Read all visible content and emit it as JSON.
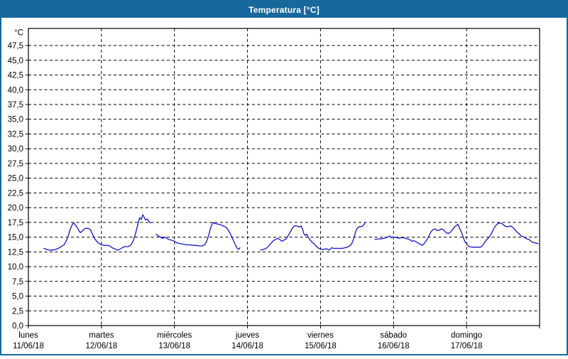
{
  "window": {
    "title": "Temperatura [°C]",
    "titlebar_color": "#17689d",
    "border_color": "#17689d",
    "background_color": "#ffffff"
  },
  "chart_data": {
    "type": "line",
    "title": "Temperatura [°C]",
    "unit_label": "°C",
    "grid": "dashed",
    "grid_color": "#000000",
    "axis_color": "#000000",
    "y_axis": {
      "min": 0,
      "max": 50.4,
      "tick_step": 2.5,
      "tick_labels": [
        "0,0",
        "2,5",
        "5,0",
        "7,5",
        "10,0",
        "12,5",
        "15,0",
        "17,5",
        "20,0",
        "22,5",
        "25,0",
        "27,5",
        "30,0",
        "32,5",
        "35,0",
        "37,5",
        "40,0",
        "42,5",
        "45,0",
        "47,5"
      ]
    },
    "x_axis": {
      "total_hours": 168,
      "days": [
        {
          "name": "lunes",
          "date": "11/06/18"
        },
        {
          "name": "martes",
          "date": "12/06/18"
        },
        {
          "name": "miércoles",
          "date": "13/06/18"
        },
        {
          "name": "jueves",
          "date": "14/06/18"
        },
        {
          "name": "viernes",
          "date": "15/06/18"
        },
        {
          "name": "sábado",
          "date": "16/06/18"
        },
        {
          "name": "domingo",
          "date": "17/06/18"
        }
      ]
    },
    "series": [
      {
        "name": "Temperatura",
        "color": "#1414cc",
        "segments": [
          [
            [
              5.1,
              13.1
            ],
            [
              6.1,
              12.9
            ],
            [
              7.0,
              12.8
            ],
            [
              7.9,
              12.8
            ],
            [
              8.9,
              12.9
            ],
            [
              9.8,
              13.1
            ],
            [
              10.7,
              13.4
            ],
            [
              11.7,
              13.7
            ],
            [
              12.4,
              14.3
            ],
            [
              13.1,
              15.2
            ],
            [
              13.8,
              16.4
            ],
            [
              14.5,
              17.2
            ],
            [
              14.9,
              17.4
            ],
            [
              15.4,
              17.1
            ],
            [
              16.1,
              16.6
            ],
            [
              16.8,
              15.9
            ],
            [
              17.3,
              15.8
            ],
            [
              18.0,
              16.2
            ],
            [
              18.7,
              16.5
            ],
            [
              19.6,
              16.5
            ],
            [
              20.3,
              16.3
            ],
            [
              21.0,
              15.6
            ],
            [
              21.7,
              14.8
            ],
            [
              22.6,
              14.2
            ],
            [
              23.3,
              13.9
            ],
            [
              24.0,
              13.7
            ],
            [
              25.0,
              13.6
            ],
            [
              25.9,
              13.6
            ],
            [
              26.8,
              13.5
            ],
            [
              27.5,
              13.2
            ],
            [
              28.5,
              13.0
            ],
            [
              29.2,
              12.8
            ],
            [
              29.9,
              12.9
            ],
            [
              30.8,
              13.2
            ],
            [
              31.7,
              13.4
            ],
            [
              32.7,
              13.4
            ],
            [
              33.6,
              13.6
            ],
            [
              34.3,
              14.2
            ],
            [
              35.0,
              15.2
            ],
            [
              35.7,
              16.6
            ],
            [
              36.2,
              17.6
            ],
            [
              36.6,
              18.3
            ],
            [
              37.1,
              18.0
            ],
            [
              37.6,
              18.8
            ],
            [
              38.0,
              18.4
            ],
            [
              38.5,
              17.9
            ],
            [
              39.0,
              18.1
            ],
            [
              39.4,
              17.8
            ],
            [
              39.9,
              17.5
            ],
            [
              40.1,
              17.4
            ]
          ],
          [
            [
              42.0,
              15.5
            ],
            [
              42.7,
              15.2
            ],
            [
              43.4,
              15.0
            ],
            [
              44.1,
              14.8
            ],
            [
              44.8,
              15.0
            ],
            [
              45.5,
              14.8
            ],
            [
              46.2,
              14.6
            ],
            [
              46.9,
              14.5
            ],
            [
              47.6,
              14.4
            ],
            [
              48.3,
              14.2
            ],
            [
              49.0,
              14.0
            ],
            [
              49.9,
              13.9
            ],
            [
              50.9,
              13.8
            ],
            [
              51.8,
              13.7
            ],
            [
              53.0,
              13.7
            ],
            [
              54.1,
              13.6
            ],
            [
              55.3,
              13.6
            ],
            [
              56.2,
              13.5
            ],
            [
              56.9,
              13.5
            ],
            [
              57.6,
              13.6
            ],
            [
              58.3,
              14.0
            ],
            [
              58.8,
              14.6
            ],
            [
              59.3,
              15.4
            ],
            [
              59.7,
              16.3
            ],
            [
              60.2,
              17.0
            ],
            [
              60.7,
              17.5
            ],
            [
              61.4,
              17.3
            ],
            [
              62.3,
              17.2
            ],
            [
              63.2,
              17.1
            ],
            [
              63.9,
              16.9
            ],
            [
              64.6,
              16.8
            ],
            [
              65.3,
              16.5
            ],
            [
              66.0,
              15.9
            ],
            [
              66.7,
              15.2
            ],
            [
              67.4,
              14.4
            ],
            [
              67.9,
              13.8
            ],
            [
              68.4,
              13.3
            ],
            [
              68.8,
              13.0
            ],
            [
              69.3,
              13.0
            ],
            [
              69.5,
              13.2
            ]
          ],
          [
            [
              76.3,
              12.8
            ],
            [
              77.0,
              12.9
            ],
            [
              77.7,
              13.0
            ],
            [
              78.4,
              13.2
            ],
            [
              79.1,
              13.6
            ],
            [
              79.8,
              14.0
            ],
            [
              80.5,
              14.4
            ],
            [
              81.2,
              14.6
            ],
            [
              81.9,
              14.8
            ],
            [
              82.6,
              14.6
            ],
            [
              83.3,
              14.3
            ],
            [
              84.0,
              14.5
            ],
            [
              84.7,
              14.7
            ],
            [
              85.4,
              15.3
            ],
            [
              86.1,
              15.9
            ],
            [
              86.6,
              16.4
            ],
            [
              87.0,
              16.7
            ],
            [
              87.5,
              16.9
            ],
            [
              88.2,
              16.9
            ],
            [
              88.7,
              16.8
            ],
            [
              89.1,
              16.7
            ],
            [
              89.6,
              16.9
            ],
            [
              90.1,
              16.4
            ],
            [
              90.5,
              15.6
            ],
            [
              91.0,
              15.3
            ],
            [
              91.5,
              15.5
            ],
            [
              91.9,
              15.0
            ],
            [
              92.6,
              14.5
            ],
            [
              93.3,
              14.1
            ],
            [
              94.0,
              13.8
            ],
            [
              94.7,
              13.4
            ],
            [
              95.4,
              13.1
            ],
            [
              96.1,
              13.0
            ],
            [
              96.8,
              12.9
            ],
            [
              97.5,
              13.0
            ],
            [
              98.2,
              13.0
            ],
            [
              98.9,
              12.8
            ],
            [
              99.6,
              13.2
            ],
            [
              100.3,
              13.1
            ],
            [
              101.3,
              13.1
            ],
            [
              102.2,
              13.1
            ],
            [
              103.1,
              13.1
            ],
            [
              104.1,
              13.2
            ],
            [
              104.8,
              13.3
            ],
            [
              105.5,
              13.5
            ],
            [
              106.2,
              13.8
            ],
            [
              106.6,
              14.3
            ],
            [
              107.1,
              15.1
            ],
            [
              107.6,
              16.0
            ],
            [
              108.0,
              16.5
            ],
            [
              108.7,
              16.8
            ],
            [
              109.4,
              16.8
            ],
            [
              109.9,
              16.9
            ],
            [
              110.4,
              17.2
            ],
            [
              110.6,
              17.5
            ]
          ],
          [
            [
              113.9,
              14.6
            ],
            [
              114.8,
              14.7
            ],
            [
              115.7,
              14.7
            ],
            [
              116.7,
              14.8
            ],
            [
              117.6,
              14.9
            ],
            [
              118.3,
              15.1
            ],
            [
              118.8,
              15.2
            ],
            [
              119.2,
              14.9
            ],
            [
              119.7,
              15.0
            ],
            [
              120.4,
              15.0
            ],
            [
              121.1,
              14.9
            ],
            [
              121.8,
              14.8
            ],
            [
              122.5,
              14.9
            ],
            [
              123.2,
              14.9
            ],
            [
              123.9,
              14.8
            ],
            [
              124.6,
              14.7
            ],
            [
              125.3,
              14.6
            ],
            [
              126.0,
              14.3
            ],
            [
              126.7,
              14.4
            ],
            [
              127.4,
              14.2
            ],
            [
              128.1,
              14.0
            ],
            [
              128.8,
              13.8
            ],
            [
              129.5,
              13.6
            ],
            [
              130.2,
              14.0
            ],
            [
              130.9,
              14.5
            ],
            [
              131.6,
              15.2
            ],
            [
              132.3,
              15.9
            ],
            [
              133.0,
              16.3
            ],
            [
              133.7,
              16.4
            ],
            [
              134.4,
              16.1
            ],
            [
              135.1,
              16.2
            ],
            [
              135.8,
              16.4
            ],
            [
              136.5,
              16.2
            ],
            [
              137.2,
              15.8
            ],
            [
              137.9,
              15.6
            ],
            [
              138.6,
              15.8
            ],
            [
              139.3,
              16.2
            ],
            [
              140.0,
              16.7
            ],
            [
              140.7,
              17.0
            ],
            [
              141.2,
              17.2
            ],
            [
              141.6,
              16.6
            ],
            [
              142.1,
              16.1
            ],
            [
              142.6,
              15.5
            ],
            [
              143.0,
              14.8
            ],
            [
              143.5,
              14.2
            ],
            [
              144.0,
              13.9
            ],
            [
              144.4,
              13.6
            ],
            [
              144.9,
              13.4
            ],
            [
              145.8,
              13.3
            ],
            [
              146.8,
              13.3
            ],
            [
              147.7,
              13.3
            ],
            [
              148.6,
              13.3
            ],
            [
              149.3,
              13.6
            ],
            [
              150.0,
              14.2
            ],
            [
              150.7,
              14.6
            ],
            [
              151.4,
              15.0
            ],
            [
              152.1,
              15.5
            ],
            [
              152.8,
              16.3
            ],
            [
              153.5,
              16.9
            ],
            [
              154.2,
              17.3
            ],
            [
              154.9,
              17.4
            ],
            [
              155.6,
              17.3
            ],
            [
              156.3,
              17.0
            ],
            [
              157.0,
              16.8
            ],
            [
              157.7,
              16.8
            ],
            [
              158.4,
              16.9
            ],
            [
              159.1,
              16.7
            ],
            [
              159.8,
              16.3
            ],
            [
              160.5,
              15.9
            ],
            [
              161.2,
              15.6
            ],
            [
              161.9,
              15.2
            ],
            [
              162.9,
              15.0
            ],
            [
              163.8,
              14.7
            ],
            [
              164.5,
              14.6
            ],
            [
              165.2,
              14.3
            ],
            [
              165.9,
              14.1
            ],
            [
              166.8,
              14.0
            ],
            [
              167.5,
              13.9
            ]
          ]
        ]
      }
    ]
  }
}
